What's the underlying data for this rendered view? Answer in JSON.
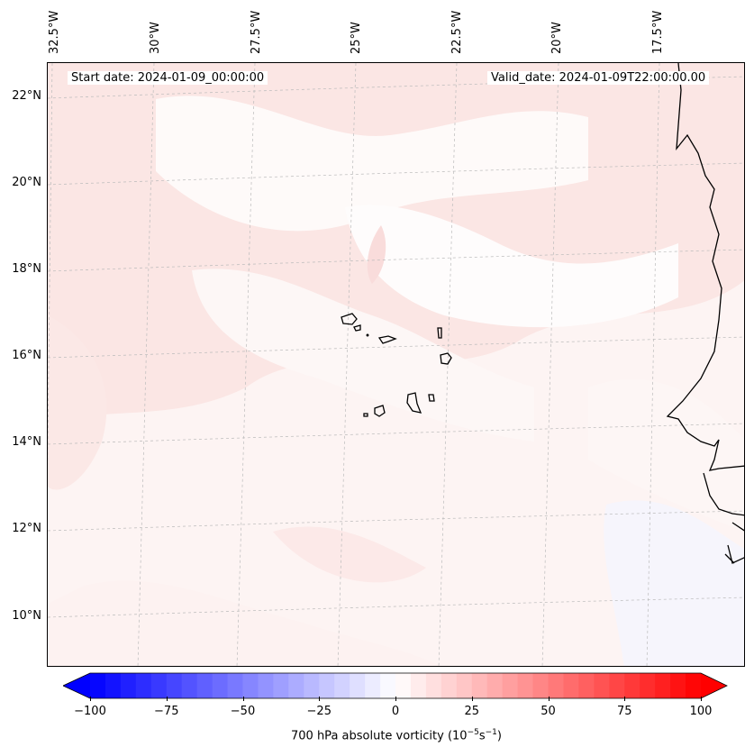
{
  "map": {
    "start_date": "Start date: 2024-01-09_00:00:00",
    "valid_date": "Valid_date: 2024-01-09T22:00:00.00",
    "lon_labels": [
      "32.5°W",
      "30°W",
      "27.5°W",
      "25°W",
      "22.5°W",
      "20°W",
      "17.5°W"
    ],
    "lat_labels": [
      "22°N",
      "20°N",
      "18°N",
      "16°N",
      "14°N",
      "12°N",
      "10°N"
    ],
    "field_colors": {
      "base": "#fdf4f3",
      "light_pink": "#fbe3e1",
      "near_white": "#fefbfb",
      "slight_blue": "#f4f4fe"
    }
  },
  "colorbar": {
    "title_prefix": "700 hPa absolute vorticity (10",
    "title_exp1": "−5",
    "title_mid": "s",
    "title_exp2": "−1",
    "title_suffix": ")",
    "min": -100,
    "max": 100,
    "ticks": [
      "−100",
      "−75",
      "−50",
      "−25",
      "0",
      "25",
      "50",
      "75",
      "100"
    ],
    "cmap": "bwr",
    "extend": "both"
  }
}
